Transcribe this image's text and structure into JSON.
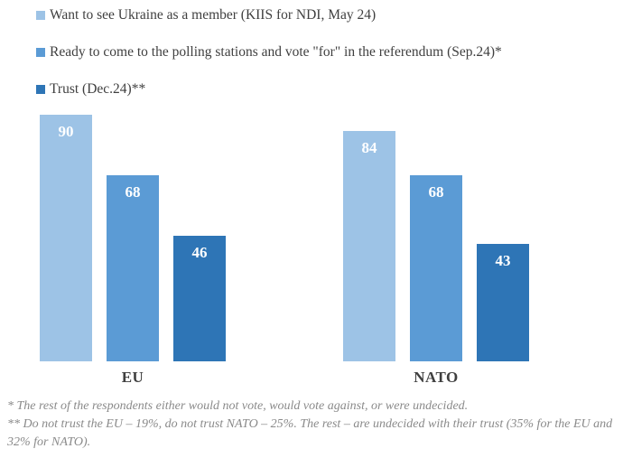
{
  "chart_data": {
    "type": "bar",
    "categories": [
      "EU",
      "NATO"
    ],
    "series": [
      {
        "name": "Want to see Ukraine as a member (KIIS for NDI, May 24)",
        "values": [
          90,
          84
        ],
        "color": "#9DC3E6"
      },
      {
        "name": "Ready to come to the polling stations and vote \"for\" in the referendum (Sep.24)*",
        "values": [
          68,
          68
        ],
        "color": "#5B9BD5"
      },
      {
        "name": "Trust (Dec.24)**",
        "values": [
          46,
          43
        ],
        "color": "#2E75B6"
      }
    ],
    "title": "",
    "xlabel": "",
    "ylabel": "",
    "ylim": [
      0,
      100
    ],
    "grid": false,
    "axis_lines": false,
    "legend_position": "top-left",
    "value_labels": "inside-top-white"
  },
  "footnotes": {
    "lines": [
      "* The rest of the respondents either would not vote, would vote against, or were undecided.",
      "** Do not trust the EU – 19%, do not trust NATO – 25%. The rest – are undecided with their trust (35% for the EU and",
      "32% for NATO)."
    ]
  },
  "colors": {
    "legend_text": "#3f3f3f",
    "category_text": "#3f3f3f",
    "footnote_text": "#8a8a8a",
    "background": "#ffffff"
  }
}
